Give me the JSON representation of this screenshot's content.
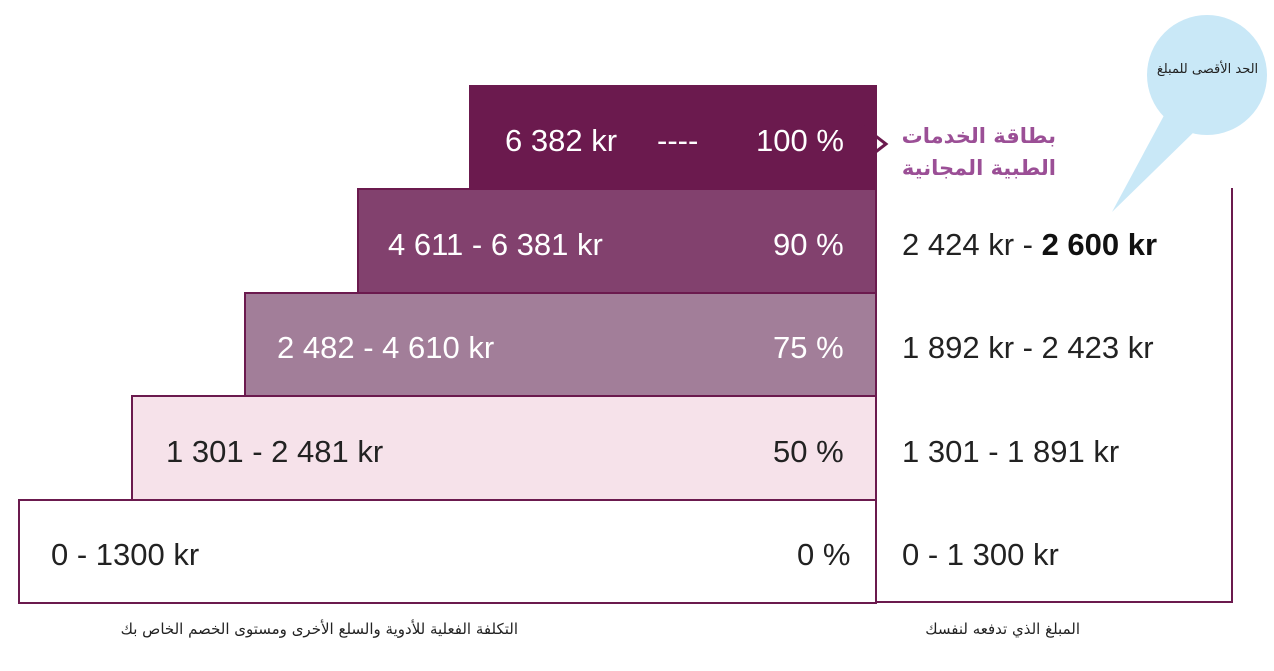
{
  "colors": {
    "level_100": "#6b1a4e",
    "level_90": "#82416e",
    "level_75": "#a27e99",
    "level_50": "#f6e2ea",
    "level_0": "#ffffff",
    "border": "#6b1a4e",
    "free_card_text": "#9b4f96",
    "bubble": "#c9e8f7"
  },
  "levels": [
    {
      "percent": "100 %",
      "cost_range": "6 382 kr",
      "dashes": "----"
    },
    {
      "percent": "90 %",
      "cost_range": "4 611 - 6 381 kr",
      "you_pay_start": "2 424 kr - ",
      "you_pay_end": "2 600 kr"
    },
    {
      "percent": "75 %",
      "cost_range": "2 482 - 4 610 kr",
      "you_pay": "1 892 kr - 2 423 kr"
    },
    {
      "percent": "50 %",
      "cost_range": "1 301 - 2 481 kr",
      "you_pay": "1 301 - 1 891 kr"
    },
    {
      "percent": "0 %",
      "cost_range": "0 - 1300 kr",
      "you_pay": "0 - 1 300 kr"
    }
  ],
  "free_card": {
    "line1": "بطاقة الخدمات",
    "line2": "الطبية المجانية"
  },
  "bubble_text": "الحد الأقصى للمبلغ",
  "captions": {
    "left": "التكلفة الفعلية للأدوية والسلع الأخرى ومستوى الخصم الخاص بك",
    "right": "المبلغ الذي تدفعه لنفسك"
  }
}
